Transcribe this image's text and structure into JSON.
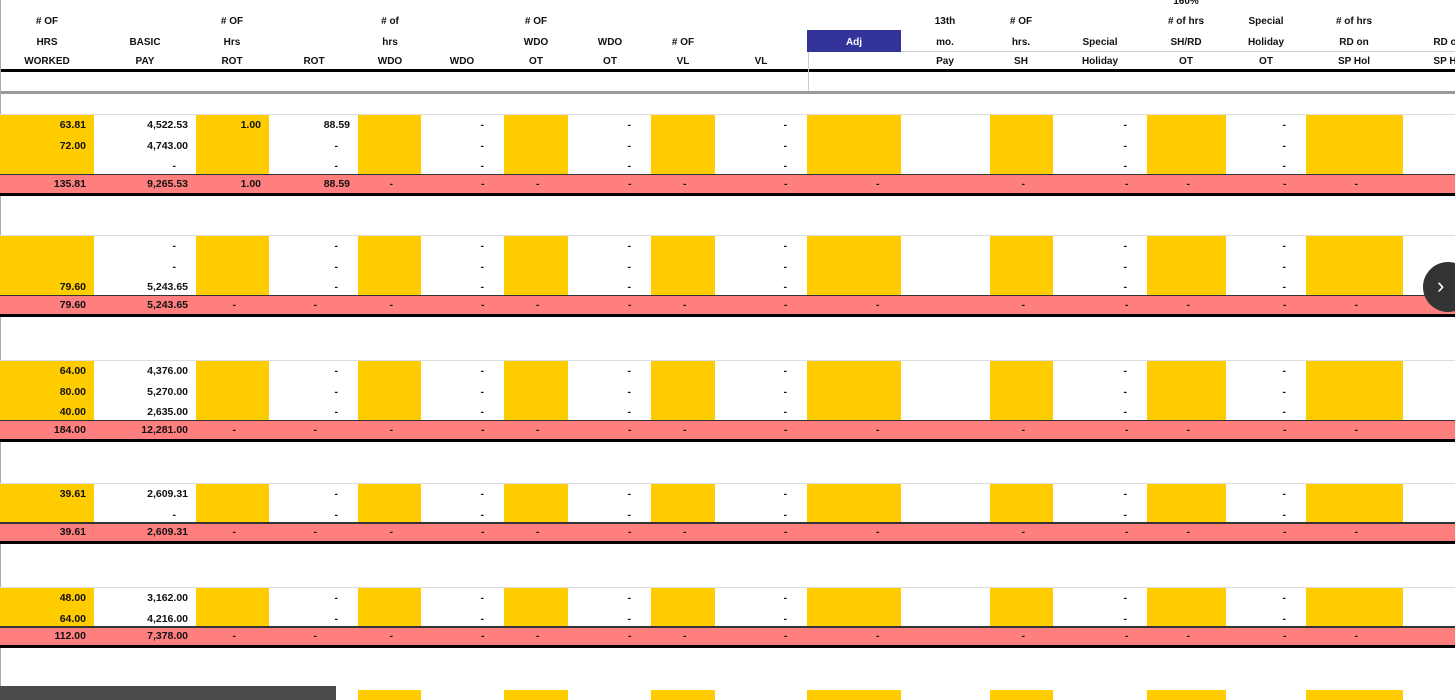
{
  "headers": [
    [
      "# OF",
      "HRS",
      "WORKED"
    ],
    [
      "",
      "BASIC",
      "PAY"
    ],
    [
      "# OF",
      "Hrs",
      "ROT"
    ],
    [
      "",
      "",
      "ROT"
    ],
    [
      "# of",
      "hrs",
      "WDO"
    ],
    [
      "",
      "",
      "WDO"
    ],
    [
      "# OF",
      "WDO",
      "OT"
    ],
    [
      "",
      "WDO",
      "OT"
    ],
    [
      "",
      "# OF",
      "VL"
    ],
    [
      "",
      "",
      "VL"
    ],
    [
      "",
      "Adj",
      ""
    ],
    [
      "13th",
      "mo.",
      "Pay"
    ],
    [
      "# OF",
      "hrs.",
      "SH"
    ],
    [
      "",
      "Special",
      "Holiday"
    ],
    [
      "# of hrs",
      "SH/RD",
      "OT"
    ],
    [
      "Special",
      "Holiday",
      "OT"
    ],
    [
      "# of hrs",
      "RD on",
      "SP Hol"
    ],
    [
      "",
      "RD o",
      "SP H"
    ]
  ],
  "header_extra": "160%",
  "groups": [
    {
      "rows": [
        [
          "63.81",
          "4,522.53",
          "1.00",
          "88.59",
          "",
          "-",
          "",
          "-",
          "",
          "-",
          "",
          "",
          "",
          "-",
          "",
          "-",
          "",
          ""
        ],
        [
          "72.00",
          "4,743.00",
          "",
          "-",
          "",
          "-",
          "",
          "-",
          "",
          "-",
          "",
          "",
          "",
          "-",
          "",
          "-",
          "",
          ""
        ],
        [
          "",
          "-",
          "",
          "-",
          "",
          "-",
          "",
          "-",
          "",
          "-",
          "",
          "",
          "",
          "-",
          "",
          "-",
          "",
          ""
        ]
      ],
      "total": [
        "135.81",
        "9,265.53",
        "1.00",
        "88.59",
        "-",
        "-",
        "-",
        "-",
        "-",
        "-",
        "-",
        "",
        "-",
        "-",
        "-",
        "-",
        "-",
        ""
      ]
    },
    {
      "rows": [
        [
          "",
          "-",
          "",
          "-",
          "",
          "-",
          "",
          "-",
          "",
          "-",
          "",
          "",
          "",
          "-",
          "",
          "-",
          "",
          ""
        ],
        [
          "",
          "-",
          "",
          "-",
          "",
          "-",
          "",
          "-",
          "",
          "-",
          "",
          "",
          "",
          "-",
          "",
          "-",
          "",
          ""
        ],
        [
          "79.60",
          "5,243.65",
          "",
          "-",
          "",
          "-",
          "",
          "-",
          "",
          "-",
          "",
          "",
          "",
          "-",
          "",
          "-",
          "",
          ""
        ]
      ],
      "total": [
        "79.60",
        "5,243.65",
        "-",
        "-",
        "-",
        "-",
        "-",
        "-",
        "-",
        "-",
        "-",
        "",
        "-",
        "-",
        "-",
        "-",
        "-",
        ""
      ]
    },
    {
      "rows": [
        [
          "64.00",
          "4,376.00",
          "",
          "-",
          "",
          "-",
          "",
          "-",
          "",
          "-",
          "",
          "",
          "",
          "-",
          "",
          "-",
          "",
          ""
        ],
        [
          "80.00",
          "5,270.00",
          "",
          "-",
          "",
          "-",
          "",
          "-",
          "",
          "-",
          "",
          "",
          "",
          "-",
          "",
          "-",
          "",
          ""
        ],
        [
          "40.00",
          "2,635.00",
          "",
          "-",
          "",
          "-",
          "",
          "-",
          "",
          "-",
          "",
          "",
          "",
          "-",
          "",
          "-",
          "",
          ""
        ]
      ],
      "total": [
        "184.00",
        "12,281.00",
        "-",
        "-",
        "-",
        "-",
        "-",
        "-",
        "-",
        "-",
        "-",
        "",
        "-",
        "-",
        "-",
        "-",
        "-",
        ""
      ]
    },
    {
      "rows": [
        [
          "39.61",
          "2,609.31",
          "",
          "-",
          "",
          "-",
          "",
          "-",
          "",
          "-",
          "",
          "",
          "",
          "-",
          "",
          "-",
          "",
          ""
        ],
        [
          "",
          "-",
          "",
          "-",
          "",
          "-",
          "",
          "-",
          "",
          "-",
          "",
          "",
          "",
          "-",
          "",
          "-",
          "",
          ""
        ]
      ],
      "total": [
        "39.61",
        "2,609.31",
        "-",
        "-",
        "-",
        "-",
        "-",
        "-",
        "-",
        "-",
        "-",
        "",
        "-",
        "-",
        "-",
        "-",
        "-",
        ""
      ]
    },
    {
      "rows": [
        [
          "48.00",
          "3,162.00",
          "",
          "-",
          "",
          "-",
          "",
          "-",
          "",
          "-",
          "",
          "",
          "",
          "-",
          "",
          "-",
          "",
          ""
        ],
        [
          "64.00",
          "4,216.00",
          "",
          "-",
          "",
          "-",
          "",
          "-",
          "",
          "-",
          "",
          "",
          "",
          "-",
          "",
          "-",
          "",
          ""
        ]
      ],
      "total": [
        "112.00",
        "7,378.00",
        "-",
        "-",
        "-",
        "-",
        "-",
        "-",
        "-",
        "-",
        "-",
        "",
        "-",
        "-",
        "-",
        "-",
        "-",
        ""
      ]
    }
  ],
  "nav_label": "›",
  "colors": {
    "yellow": "#ffcc00",
    "total": "#ff7f7f",
    "adj": "#333399"
  }
}
